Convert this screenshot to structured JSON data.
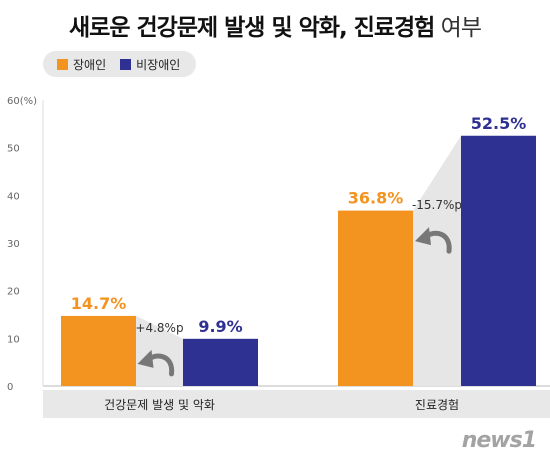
{
  "title_bold": "새로운 건강문제 발생 및 악화, 진료경험",
  "title_light": "여부",
  "logo": "news1",
  "colors": {
    "disabled": "#f39320",
    "non_disabled": "#2e3192",
    "diff_band": "#e6e6e6",
    "arrow": "#777777"
  },
  "chart_data": {
    "type": "bar",
    "title": "새로운 건강문제 발생 및 악화, 진료경험 여부",
    "ylabel": "(%)",
    "ylim": [
      0,
      60
    ],
    "yticks": [
      0,
      10,
      20,
      30,
      40,
      50,
      60
    ],
    "ytick_labels": [
      "0",
      "10",
      "20",
      "30",
      "40",
      "50",
      "60(%)"
    ],
    "legend_position": "top-left",
    "grid": false,
    "categories": [
      "건강문제 발생 및 악화",
      "진료경험"
    ],
    "series": [
      {
        "name": "장애인",
        "values": [
          14.7,
          36.8
        ],
        "labels": [
          "14.7%",
          "36.8%"
        ]
      },
      {
        "name": "비장애인",
        "values": [
          9.9,
          52.5
        ],
        "labels": [
          "9.9%",
          "52.5%"
        ]
      }
    ],
    "annotations": [
      "+4.8%p",
      "-15.7%p"
    ]
  }
}
